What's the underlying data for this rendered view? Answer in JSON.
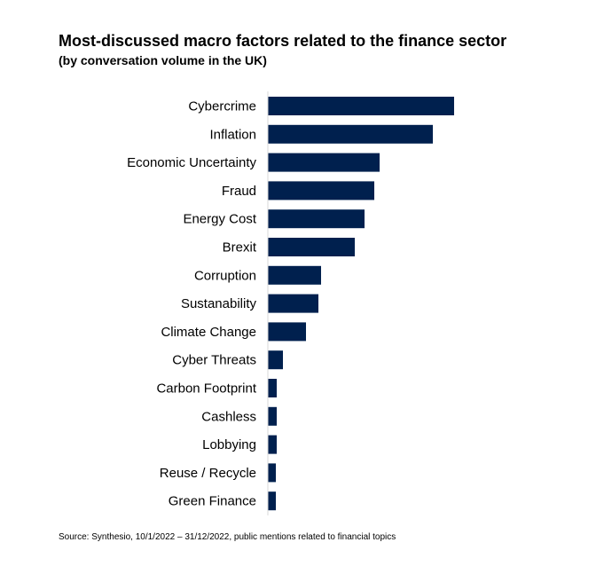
{
  "title": "Most-discussed macro factors related to the finance sector",
  "subtitle": "(by conversation volume in the UK)",
  "source": "Source: Synthesio, 10/1/2022 – 31/12/2022, public mentions related to financial topics",
  "chart_data": {
    "type": "bar",
    "orientation": "horizontal",
    "title": "Most-discussed macro factors related to the finance sector",
    "subtitle": "(by conversation volume in the UK)",
    "categories": [
      "Cybercrime",
      "Inflation",
      "Economic Uncertainty",
      "Fraud",
      "Energy Cost",
      "Brexit",
      "Corruption",
      "Sustanability",
      "Climate Change",
      "Cyber Threats",
      "Carbon Footprint",
      "Cashless",
      "Lobbying",
      "Reuse / Recycle",
      "Green Finance"
    ],
    "values": [
      210,
      186,
      126,
      120,
      109,
      98,
      60,
      57,
      43,
      17,
      10,
      10,
      10,
      9,
      9
    ],
    "xlabel": "",
    "ylabel": "",
    "xlim": [
      0,
      210
    ],
    "grid": false,
    "legend": "none",
    "bar_color": "#00204e",
    "axis_color": "#d9d9d9"
  }
}
